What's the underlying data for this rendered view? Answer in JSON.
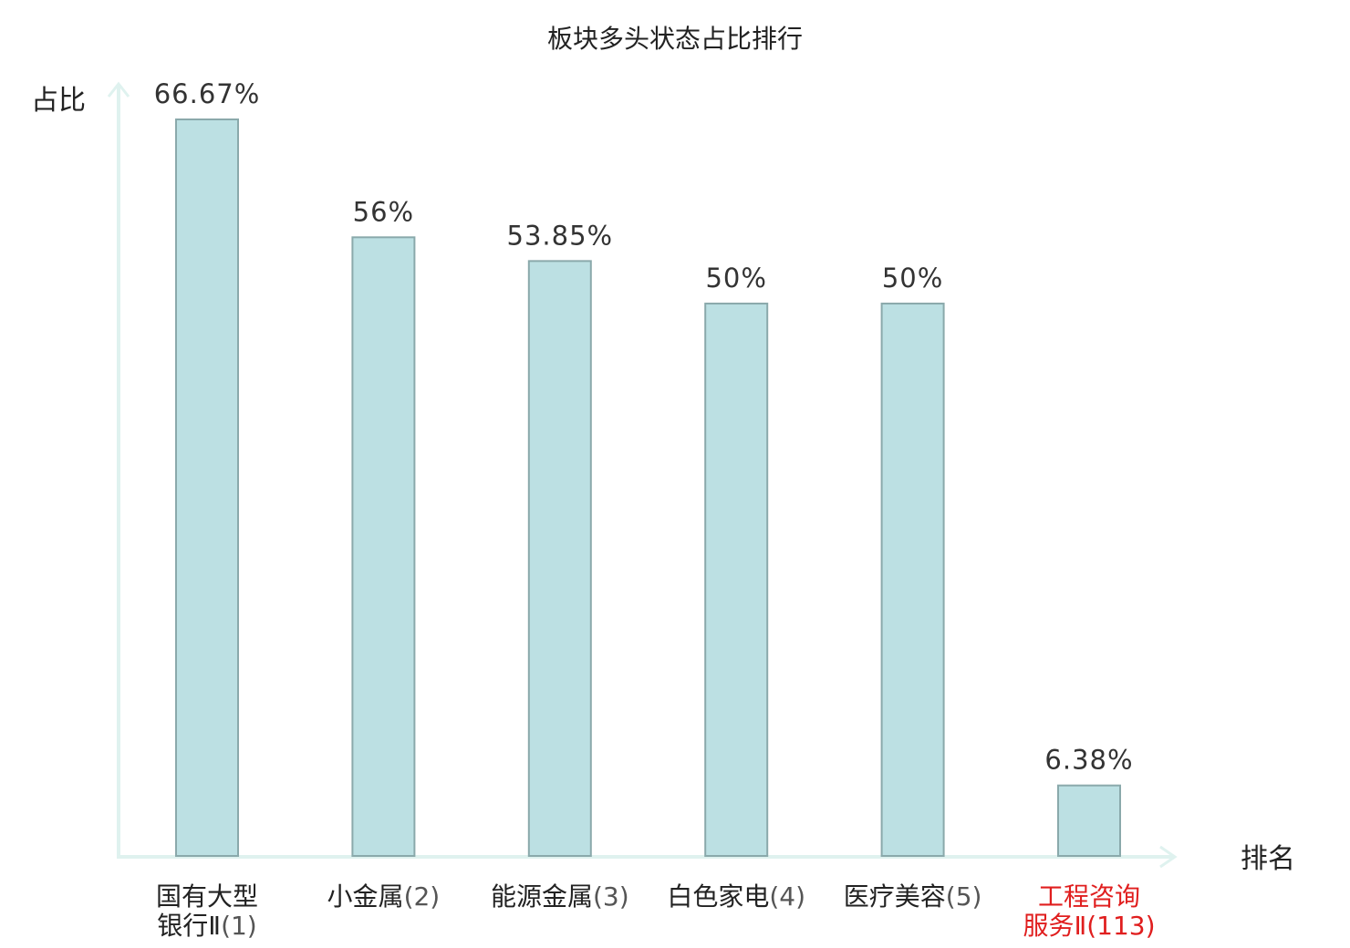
{
  "chart_data": {
    "type": "bar",
    "title": "板块多头状态占比排行",
    "ylabel": "占比",
    "xlabel": "排名",
    "ylim": [
      0,
      70
    ],
    "grid": false,
    "categories": [
      {
        "lines": [
          "国有大型",
          "银行Ⅱ(1)"
        ],
        "value": 66.67,
        "label": "66.67%",
        "highlight": false
      },
      {
        "lines": [
          "小金属(2)"
        ],
        "value": 56,
        "label": "56%",
        "highlight": false
      },
      {
        "lines": [
          "能源金属(3)"
        ],
        "value": 53.85,
        "label": "53.85%",
        "highlight": false
      },
      {
        "lines": [
          "白色家电(4)"
        ],
        "value": 50,
        "label": "50%",
        "highlight": false
      },
      {
        "lines": [
          "医疗美容(5)"
        ],
        "value": 50,
        "label": "50%",
        "highlight": false
      },
      {
        "lines": [
          "工程咨询",
          "服务Ⅱ(113)"
        ],
        "value": 6.38,
        "label": "6.38%",
        "highlight": true
      }
    ],
    "colors": {
      "bar_fill": "#bce0e3",
      "bar_stroke": "#8aa9ab",
      "axis": "#dff2ef",
      "highlight_text": "#e01e1e"
    }
  }
}
